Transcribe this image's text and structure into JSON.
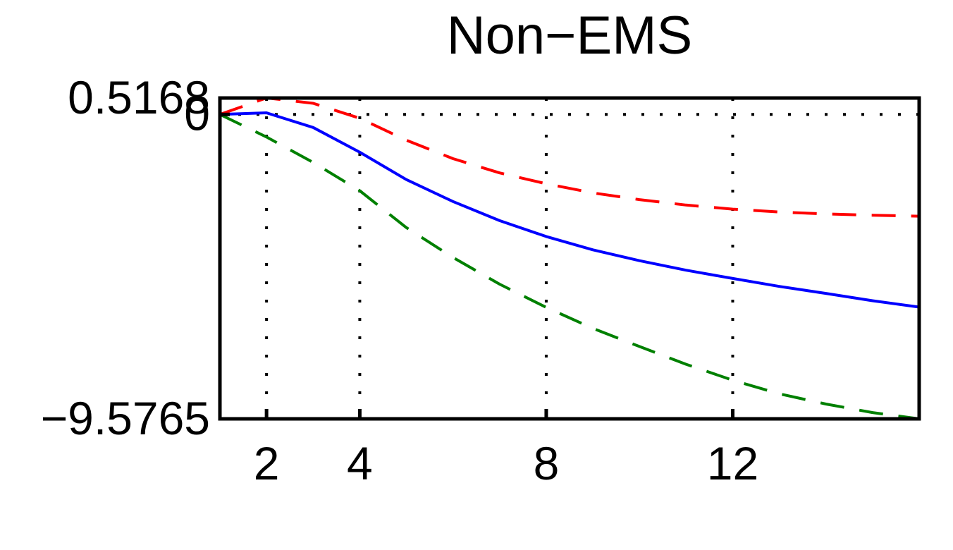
{
  "chart_data": {
    "type": "line",
    "title": "Non−EMS",
    "xlabel": "",
    "ylabel": "",
    "xlim": [
      1,
      16
    ],
    "ylim": [
      -9.5765,
      0.5168
    ],
    "x_ticks": [
      {
        "value": 2,
        "label": "2"
      },
      {
        "value": 4,
        "label": "4"
      },
      {
        "value": 8,
        "label": "8"
      },
      {
        "value": 12,
        "label": "12"
      }
    ],
    "y_ticks": [
      {
        "value": 0.5168,
        "label": "0.5168"
      },
      {
        "value": 0,
        "label": "0"
      },
      {
        "value": -9.5765,
        "label": "−9.5765"
      }
    ],
    "grid": "dotted",
    "zero_line": true,
    "x": [
      1,
      2,
      3,
      4,
      5,
      6,
      7,
      8,
      9,
      10,
      11,
      12,
      13,
      14,
      15,
      16
    ],
    "series": [
      {
        "color": "#0000ff",
        "style": "solid",
        "values": [
          0,
          0.05,
          -0.41,
          -1.19,
          -2.05,
          -2.74,
          -3.34,
          -3.84,
          -4.26,
          -4.6,
          -4.9,
          -5.16,
          -5.41,
          -5.63,
          -5.86,
          -6.06
        ]
      },
      {
        "color": "#ff0000",
        "style": "dashed",
        "values": [
          0,
          0.52,
          0.35,
          -0.12,
          -0.81,
          -1.39,
          -1.84,
          -2.18,
          -2.47,
          -2.68,
          -2.85,
          -2.98,
          -3.07,
          -3.13,
          -3.17,
          -3.2
        ]
      },
      {
        "color": "#008000",
        "style": "dashed",
        "values": [
          0,
          -0.71,
          -1.51,
          -2.4,
          -3.56,
          -4.5,
          -5.34,
          -6.07,
          -6.73,
          -7.3,
          -7.86,
          -8.36,
          -8.79,
          -9.11,
          -9.38,
          -9.5765
        ]
      }
    ]
  }
}
